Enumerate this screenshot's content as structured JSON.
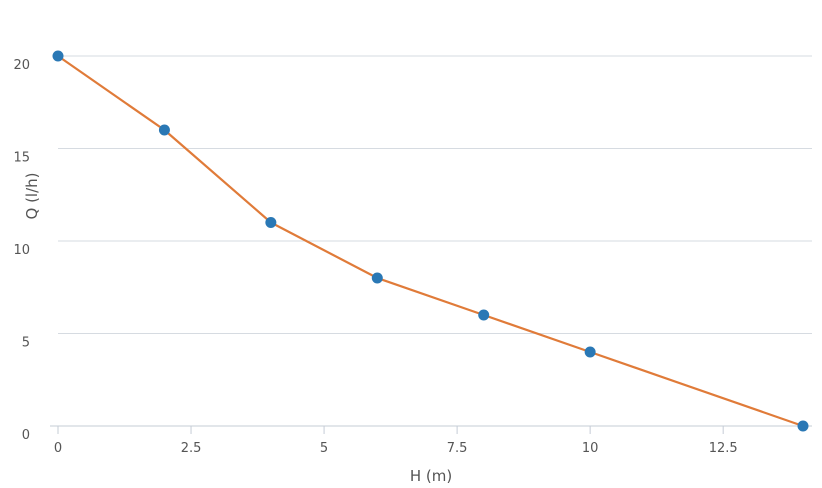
{
  "chart_data": {
    "type": "line",
    "title": "",
    "xlabel": "H (m)",
    "ylabel": "Q (l/h)",
    "xlim": [
      0,
      14
    ],
    "ylim": [
      0,
      20
    ],
    "x_ticks": [
      0,
      2.5,
      5,
      7.5,
      10,
      12.5
    ],
    "x_tick_labels": [
      "0",
      "2.5",
      "5",
      "7.5",
      "10",
      "12.5"
    ],
    "y_ticks": [
      0,
      5,
      10,
      15,
      20
    ],
    "y_tick_labels": [
      "0",
      "5",
      "10",
      "15",
      "20"
    ],
    "grid": "horizontal",
    "legend": "none",
    "series": [
      {
        "x": [
          0,
          2,
          4,
          6,
          8,
          10,
          14
        ],
        "y": [
          20,
          16,
          11,
          8,
          6,
          4,
          0
        ],
        "line_color": "#e07b39",
        "marker_color": "#2a78b5"
      }
    ]
  }
}
